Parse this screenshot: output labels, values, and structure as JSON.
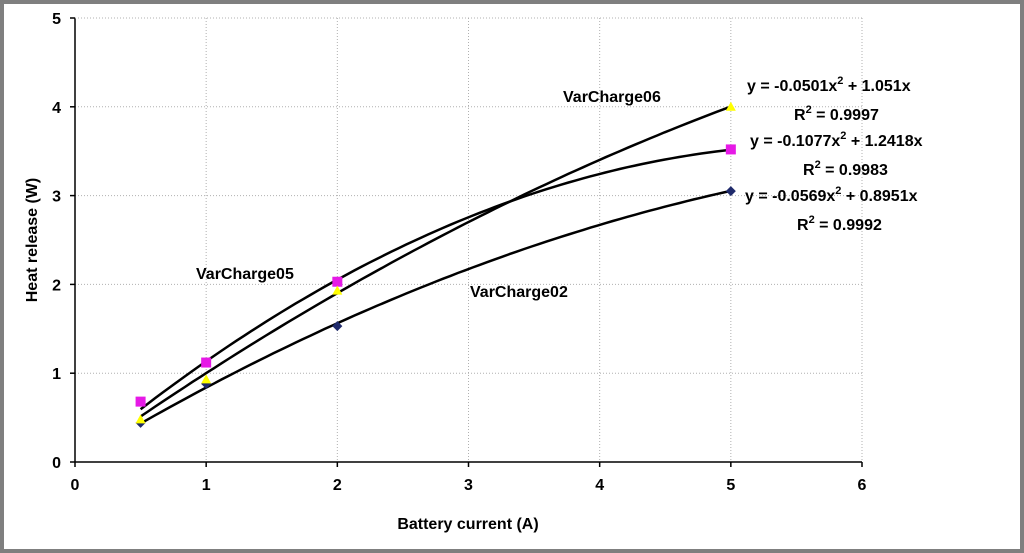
{
  "chart_data": {
    "type": "scatter",
    "xlabel": "Battery current (A)",
    "ylabel": "Heat release (W)",
    "xlim": [
      0,
      6
    ],
    "ylim": [
      0,
      5
    ],
    "xticks": [
      "0",
      "1",
      "2",
      "3",
      "4",
      "5",
      "6"
    ],
    "yticks": [
      "0",
      "1",
      "2",
      "3",
      "4",
      "5"
    ],
    "grid": true,
    "series": [
      {
        "name": "VarCharge02",
        "color": "#1f2a6b",
        "marker": "diamond",
        "x": [
          0.5,
          1,
          2,
          5
        ],
        "y": [
          0.44,
          0.88,
          1.53,
          3.05
        ],
        "trend": {
          "a": -0.0569,
          "b": 0.8951
        }
      },
      {
        "name": "VarCharge05",
        "color": "#e619e6",
        "marker": "square",
        "x": [
          0.5,
          1,
          2,
          5
        ],
        "y": [
          0.68,
          1.12,
          2.03,
          3.52
        ],
        "trend": {
          "a": -0.1077,
          "b": 1.2418
        }
      },
      {
        "name": "VarCharge06",
        "color": "#ffff00",
        "marker": "triangle",
        "x": [
          0.5,
          1,
          2,
          5
        ],
        "y": [
          0.48,
          0.93,
          1.93,
          4.0
        ],
        "trend": {
          "a": -0.0501,
          "b": 1.051
        }
      }
    ],
    "equations": [
      {
        "series": "VarCharge06",
        "eq_pre": "y = -0.0501x",
        "eq_sup": "2",
        "eq_post": " + 1.051x",
        "r2_pre": "R",
        "r2_sup": "2",
        "r2_post": " = 0.9997"
      },
      {
        "series": "VarCharge05",
        "eq_pre": "y = -0.1077x",
        "eq_sup": "2",
        "eq_post": " + 1.2418x",
        "r2_pre": "R",
        "r2_sup": "2",
        "r2_post": " = 0.9983"
      },
      {
        "series": "VarCharge02",
        "eq_pre": "y = -0.0569x",
        "eq_sup": "2",
        "eq_post": " + 0.8951x",
        "r2_pre": "R",
        "r2_sup": "2",
        "r2_post": " = 0.9992"
      }
    ],
    "annotations": [
      "VarCharge06",
      "VarCharge05",
      "VarCharge02"
    ]
  }
}
